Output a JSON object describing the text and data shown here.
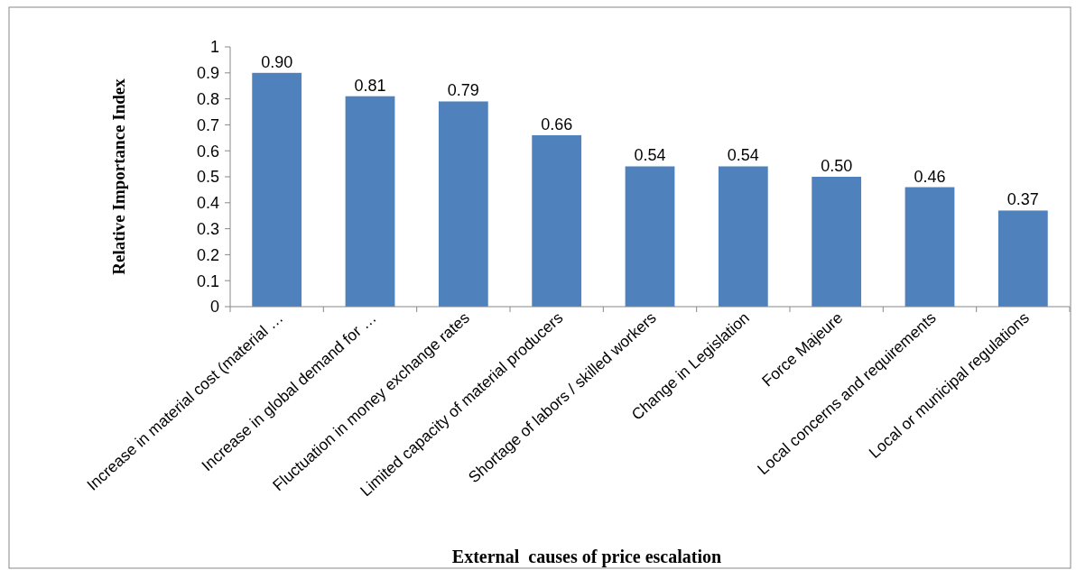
{
  "chart_data": {
    "type": "bar",
    "xlabel": "External  causes of price escalation",
    "ylabel": "Relative Importance Index",
    "categories": [
      "Increase in material cost (material …",
      "Increase in global demand for …",
      "Fluctuation in money exchange rates",
      "Limited capacity of material producers",
      "Shortage of labors / skilled workers",
      "Change in Legislation",
      "Force Majeure",
      "Local concerns and requirements",
      "Local or municipal regulations"
    ],
    "values": [
      0.9,
      0.81,
      0.79,
      0.66,
      0.54,
      0.54,
      0.5,
      0.46,
      0.37
    ],
    "value_labels": [
      "0.90",
      "0.81",
      "0.79",
      "0.66",
      "0.54",
      "0.54",
      "0.50",
      "0.46",
      "0.37"
    ],
    "color": "#4f81bd",
    "ylim": [
      0,
      1
    ],
    "yticks": [
      0,
      0.1,
      0.2,
      0.3,
      0.4,
      0.5,
      0.6,
      0.7,
      0.8,
      0.9,
      1
    ],
    "grid": false
  }
}
